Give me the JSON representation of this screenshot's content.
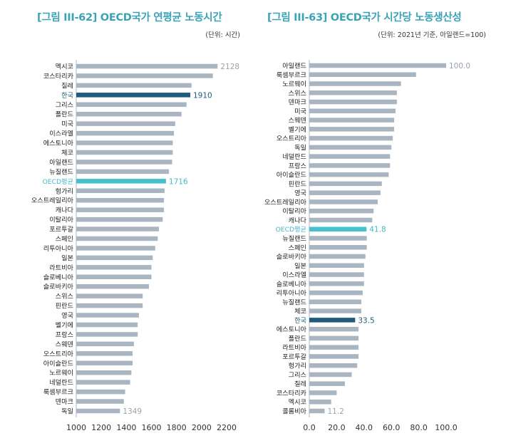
{
  "chart_data": [
    {
      "type": "bar",
      "orientation": "horizontal",
      "title": "[그림 III-62] OECD국가 연평균 노동시간",
      "unit": "(단위: 시간)",
      "xlim": [
        1000,
        2200
      ],
      "ticks": [
        "1000",
        "1200",
        "1400",
        "1600",
        "1800",
        "2000",
        "2200"
      ],
      "colors": {
        "bar": "#a9b5c0",
        "highlight": "#1e5b7c",
        "average": "#45c0cd",
        "axis": "#bfc5cb"
      },
      "labeled_values": {
        "멕시코": "2128",
        "한국": "1910",
        "OECD평균": "1716",
        "독일": "1349"
      },
      "highlight": "한국",
      "average": "OECD평균",
      "categories": [
        "멕시코",
        "코스타리카",
        "칠레",
        "한국",
        "그리스",
        "폴란드",
        "미국",
        "이스라엘",
        "에스토니아",
        "체코",
        "아일랜드",
        "뉴질랜드",
        "OECD평균",
        "헝가리",
        "오스트레일리아",
        "캐나다",
        "이탈리아",
        "포르투갈",
        "스페인",
        "리투아니아",
        "일본",
        "라트비아",
        "슬로베니아",
        "슬로바키아",
        "스위스",
        "핀란드",
        "영국",
        "벨기에",
        "프랑스",
        "스웨덴",
        "오스트리아",
        "아이슬란드",
        "노르웨이",
        "네덜란드",
        "룩셈부르크",
        "덴마크",
        "독일"
      ],
      "values": [
        2128,
        2090,
        1920,
        1910,
        1880,
        1840,
        1790,
        1780,
        1770,
        1770,
        1765,
        1740,
        1716,
        1705,
        1700,
        1700,
        1690,
        1660,
        1650,
        1630,
        1610,
        1600,
        1600,
        1580,
        1530,
        1530,
        1500,
        1490,
        1490,
        1460,
        1450,
        1450,
        1440,
        1430,
        1390,
        1380,
        1349
      ]
    },
    {
      "type": "bar",
      "orientation": "horizontal",
      "title": "[그림 III-63] OECD국가 시간당 노동생산성",
      "unit": "(단위: 2021년 기준, 아일랜드=100)",
      "xlim": [
        0,
        100
      ],
      "ticks": [
        "0.0",
        "20.0",
        "40.0",
        "60.0",
        "80.0",
        "100.0"
      ],
      "colors": {
        "bar": "#a9b5c0",
        "highlight": "#1e5b7c",
        "average": "#45c0cd",
        "axis": "#bfc5cb"
      },
      "labeled_values": {
        "아일랜드": "100.0",
        "OECD평균": "41.8",
        "한국": "33.5",
        "콜롬비아": "11.2"
      },
      "highlight": "한국",
      "average": "OECD평균",
      "categories": [
        "아일랜드",
        "룩셈부르크",
        "노르웨이",
        "스위스",
        "덴마크",
        "미국",
        "스웨덴",
        "벨기에",
        "오스트리아",
        "독일",
        "네덜란드",
        "프랑스",
        "아이슬란드",
        "핀란드",
        "영국",
        "오스트레일리아",
        "이탈리아",
        "캐나다",
        "OECD평균",
        "뉴질랜드",
        "스페인",
        "슬로바키아",
        "일본",
        "이스라엘",
        "슬로베니아",
        "리투아니아",
        "뉴질랜드",
        "체코",
        "한국",
        "에스토니아",
        "폴란드",
        "라트비아",
        "포르투갈",
        "헝가리",
        "그리스",
        "칠레",
        "코스타리카",
        "멕시코",
        "콜롬비아"
      ],
      "values": [
        100.0,
        78.0,
        67.0,
        64.0,
        64.0,
        63.0,
        62.0,
        62.0,
        61.0,
        60.0,
        59.0,
        59.0,
        58.0,
        53.0,
        52.0,
        50.0,
        47.0,
        46.0,
        41.8,
        42.0,
        42.0,
        41.0,
        40.0,
        40.0,
        40.0,
        39.0,
        38.0,
        38.0,
        33.5,
        36.0,
        36.0,
        36.0,
        36.0,
        35.0,
        31.0,
        26.0,
        20.0,
        16.0,
        11.2
      ]
    }
  ]
}
